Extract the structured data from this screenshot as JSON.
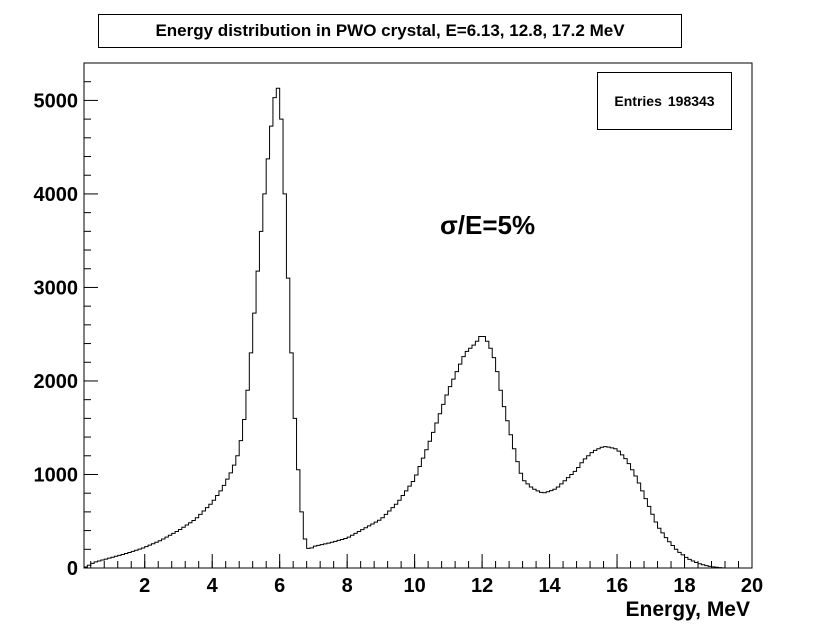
{
  "chart_data": {
    "type": "histogram",
    "title": "Energy distribution in PWO crystal, E=6.13, 12.8, 17.2 MeV",
    "xlabel": "Energy, MeV",
    "ylabel": "",
    "xlim": [
      0.2,
      20
    ],
    "ylim": [
      0,
      5400
    ],
    "x_ticks": [
      "2",
      "4",
      "6",
      "8",
      "10",
      "12",
      "14",
      "16",
      "18",
      "20"
    ],
    "y_ticks": [
      "0",
      "1000",
      "2000",
      "3000",
      "4000",
      "5000"
    ],
    "stats": {
      "label": "Entries",
      "value": "198343"
    },
    "annotation": "σ/E=5%",
    "bin_width": 0.1,
    "x": [
      0.5,
      1.0,
      1.5,
      2.0,
      2.5,
      3.0,
      3.5,
      4.0,
      4.3,
      4.6,
      4.8,
      5.0,
      5.2,
      5.4,
      5.6,
      5.8,
      5.9,
      6.0,
      6.1,
      6.2,
      6.3,
      6.4,
      6.5,
      6.6,
      6.7,
      6.8,
      6.9,
      7.0,
      7.5,
      8.0,
      8.5,
      9.0,
      9.5,
      10.0,
      10.5,
      11.0,
      11.5,
      11.8,
      12.0,
      12.2,
      12.4,
      12.6,
      12.8,
      13.0,
      13.2,
      13.5,
      13.8,
      14.0,
      14.2,
      14.5,
      14.8,
      15.0,
      15.3,
      15.6,
      15.8,
      16.0,
      16.3,
      16.6,
      16.9,
      17.2,
      17.5,
      17.8,
      18.1,
      18.4,
      18.7,
      19.0,
      19.2
    ],
    "y": [
      60,
      110,
      160,
      220,
      300,
      400,
      520,
      700,
      850,
      1050,
      1250,
      1700,
      2500,
      3400,
      4200,
      4900,
      5160,
      5100,
      4500,
      3500,
      2700,
      1900,
      1300,
      800,
      400,
      220,
      200,
      230,
      270,
      320,
      420,
      520,
      700,
      950,
      1400,
      1900,
      2300,
      2400,
      2500,
      2400,
      2200,
      1800,
      1500,
      1200,
      950,
      850,
      800,
      820,
      850,
      950,
      1050,
      1150,
      1250,
      1300,
      1290,
      1270,
      1150,
      950,
      700,
      450,
      300,
      180,
      100,
      50,
      20,
      5,
      0
    ]
  }
}
